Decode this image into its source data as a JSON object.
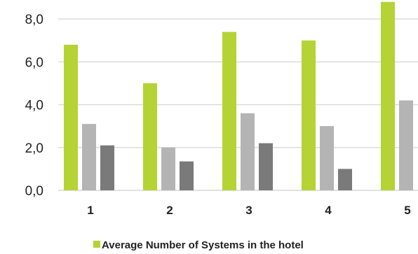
{
  "chart_data": {
    "type": "bar",
    "categories": [
      "1",
      "2",
      "3",
      "4",
      "5"
    ],
    "series": [
      {
        "name": "Average Number of Systems in the hotel",
        "values": [
          6.8,
          5.0,
          7.4,
          7.0,
          8.8
        ],
        "color": "#b5d334"
      },
      {
        "values": [
          3.1,
          2.0,
          3.6,
          3.0,
          4.2
        ],
        "color": "#b4b4b4"
      },
      {
        "values": [
          2.1,
          1.35,
          2.2,
          1.0,
          0
        ],
        "color": "#7a7a7a"
      }
    ],
    "y_ticks": [
      "0,0",
      "2,0",
      "4,0",
      "6,0",
      "8,0"
    ],
    "y_tick_values": [
      0,
      2,
      4,
      6,
      8
    ],
    "ylim": [
      0,
      8.8
    ],
    "grid": true,
    "gridline_color": "#d9d9d9",
    "legend_placement": "bottom",
    "title": "",
    "xlabel": "",
    "ylabel": ""
  }
}
